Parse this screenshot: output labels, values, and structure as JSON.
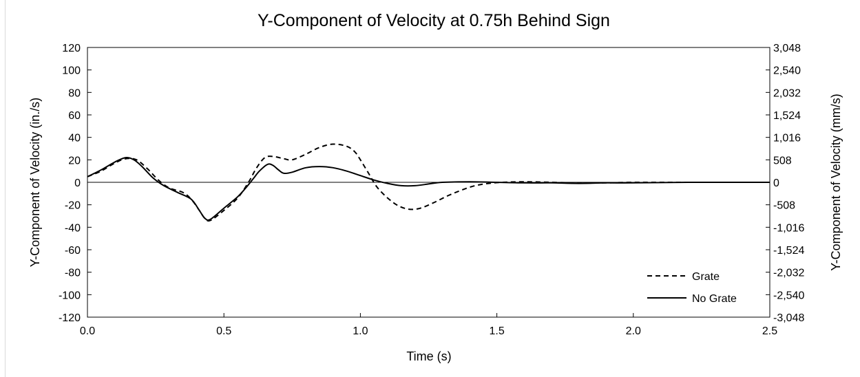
{
  "chart_data": {
    "type": "line",
    "title": "Y-Component of Velocity at 0.75h Behind Sign",
    "xlabel": "Time (s)",
    "ylabel": "Y-Component of Velocity (in./s)",
    "y2label": "Y-Component of Velocity (mm/s)",
    "xlim": [
      0,
      2.5
    ],
    "ylim": [
      -120,
      120
    ],
    "x_ticks": [
      "0.0",
      "0.5",
      "1.0",
      "1.5",
      "2.0",
      "2.5"
    ],
    "y_ticks": [
      "120",
      "100",
      "80",
      "60",
      "40",
      "20",
      "0",
      "-20",
      "-40",
      "-60",
      "-80",
      "-100",
      "-120"
    ],
    "y2_ticks": [
      "3,048",
      "2,540",
      "2,032",
      "1,524",
      "1,016",
      "508",
      "0",
      "-508",
      "-1,016",
      "-1,524",
      "-2,032",
      "-2,540",
      "-3,048"
    ],
    "grid": false,
    "legend_position": "bottom-right",
    "series": [
      {
        "name": "Grate",
        "style": "dashed",
        "color": "#000000",
        "x": [
          0.0,
          0.05,
          0.1,
          0.14,
          0.18,
          0.22,
          0.26,
          0.3,
          0.35,
          0.38,
          0.41,
          0.43,
          0.45,
          0.5,
          0.55,
          0.59,
          0.62,
          0.65,
          0.68,
          0.72,
          0.75,
          0.8,
          0.85,
          0.9,
          0.95,
          0.98,
          1.0,
          1.03,
          1.06,
          1.1,
          1.14,
          1.18,
          1.22,
          1.27,
          1.32,
          1.37,
          1.42,
          1.47,
          1.52,
          1.6,
          1.7,
          1.8,
          1.9,
          2.0,
          2.2,
          2.5
        ],
        "values": [
          5,
          10,
          17,
          21,
          20,
          12,
          2,
          -5,
          -9,
          -15,
          -25,
          -32,
          -34,
          -25,
          -14,
          0,
          13,
          22,
          23,
          21,
          20,
          25,
          31,
          34,
          32,
          27,
          20,
          8,
          -4,
          -14,
          -21,
          -24,
          -23,
          -18,
          -12,
          -7,
          -3,
          -1,
          0,
          0.5,
          0,
          -0.5,
          -0.5,
          0,
          0,
          0
        ]
      },
      {
        "name": "No Grate",
        "style": "solid",
        "color": "#000000",
        "x": [
          0.0,
          0.05,
          0.1,
          0.14,
          0.17,
          0.2,
          0.24,
          0.28,
          0.33,
          0.38,
          0.41,
          0.43,
          0.45,
          0.5,
          0.55,
          0.58,
          0.61,
          0.63,
          0.66,
          0.68,
          0.7,
          0.72,
          0.75,
          0.8,
          0.85,
          0.9,
          0.95,
          1.0,
          1.05,
          1.1,
          1.15,
          1.2,
          1.25,
          1.3,
          1.4,
          1.5,
          1.6,
          1.7,
          1.8,
          1.9,
          2.0,
          2.2,
          2.5
        ],
        "values": [
          5,
          11,
          18,
          22,
          20,
          14,
          4,
          -3,
          -9,
          -15,
          -25,
          -32,
          -33,
          -23,
          -13,
          -5,
          4,
          10,
          16,
          15,
          11,
          8,
          9,
          13,
          14,
          13,
          10,
          6,
          2,
          -1,
          -3,
          -3,
          -1.5,
          0,
          0.5,
          0,
          -0.5,
          -0.5,
          -1,
          -0.5,
          -0.5,
          0,
          0
        ]
      }
    ]
  }
}
